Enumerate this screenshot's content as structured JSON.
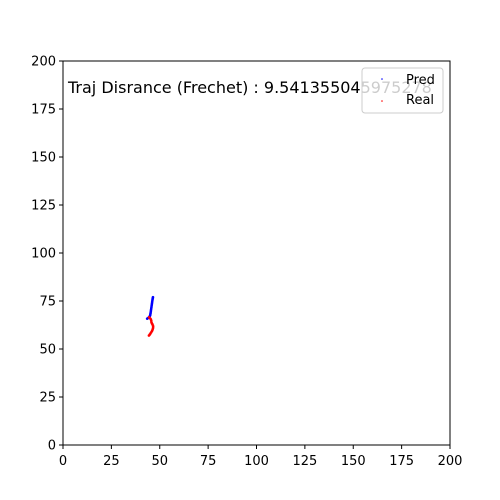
{
  "chart_data": {
    "type": "scatter",
    "annotation": "Traj Disrance (Frechet) : 9.541355045975278",
    "xlim": [
      0,
      200
    ],
    "ylim": [
      0,
      200
    ],
    "x_ticks": [
      0,
      25,
      50,
      75,
      100,
      125,
      150,
      175,
      200
    ],
    "y_ticks": [
      0,
      25,
      50,
      75,
      100,
      125,
      150,
      175,
      200
    ],
    "grid": false,
    "legend": {
      "placement": "top-right"
    },
    "series": [
      {
        "name": "Pred",
        "color": "#0000ff",
        "points": [
          [
            46.5,
            77
          ],
          [
            46.4,
            76.5
          ],
          [
            46.3,
            76
          ],
          [
            46.2,
            75.3
          ],
          [
            46.1,
            74.6
          ],
          [
            46.0,
            73.9
          ],
          [
            45.9,
            73.2
          ],
          [
            45.8,
            72.5
          ],
          [
            45.7,
            71.8
          ],
          [
            45.6,
            71.1
          ],
          [
            45.5,
            70.4
          ],
          [
            45.4,
            69.7
          ],
          [
            45.3,
            69.0
          ],
          [
            45.2,
            68.4
          ],
          [
            45.1,
            67.8
          ],
          [
            44.9,
            67.2
          ],
          [
            44.6,
            66.7
          ],
          [
            44.2,
            66.3
          ],
          [
            43.8,
            66.0
          ],
          [
            43.5,
            65.8
          ]
        ]
      },
      {
        "name": "Real",
        "color": "#ff0000",
        "points": [
          [
            44.5,
            66.5
          ],
          [
            45.0,
            66.0
          ],
          [
            45.4,
            65.5
          ],
          [
            45.6,
            64.8
          ],
          [
            45.7,
            64.0
          ],
          [
            45.9,
            63.4
          ],
          [
            46.2,
            62.9
          ],
          [
            46.5,
            62.2
          ],
          [
            46.6,
            61.5
          ],
          [
            46.5,
            60.8
          ],
          [
            46.3,
            60.1
          ],
          [
            46.0,
            59.4
          ],
          [
            45.6,
            58.7
          ],
          [
            45.2,
            58.1
          ],
          [
            44.8,
            57.5
          ],
          [
            44.4,
            57.0
          ]
        ]
      }
    ]
  }
}
